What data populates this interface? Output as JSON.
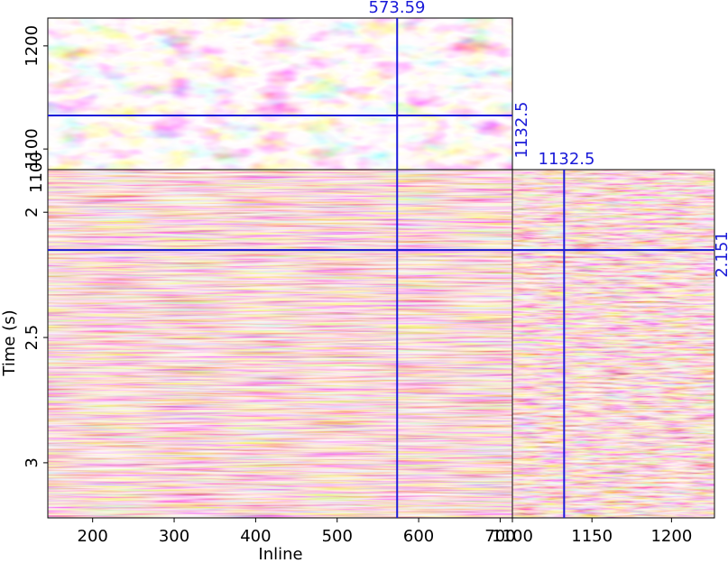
{
  "figure": {
    "type": "seismic-3d-cube-slices",
    "panels": {
      "time_slice": {
        "crossline_axis": {
          "ticks": [
            {
              "value": 1100,
              "label": "1100"
            },
            {
              "value": 1200,
              "label": "1200"
            }
          ],
          "range": [
            1080,
            1227
          ]
        }
      },
      "inline_section": {
        "xlabel": "Inline",
        "ylabel": "Time (s)",
        "x_range": [
          145,
          715
        ],
        "y_range": [
          1.83,
          3.22
        ],
        "x_ticks": [
          {
            "value": 200,
            "label": "200"
          },
          {
            "value": 300,
            "label": "300"
          },
          {
            "value": 400,
            "label": "400"
          },
          {
            "value": 500,
            "label": "500"
          },
          {
            "value": 600,
            "label": "600"
          },
          {
            "value": 700,
            "label": "700"
          }
        ],
        "y_ticks": [
          {
            "value": 2,
            "label": "2"
          },
          {
            "value": 2.5,
            "label": "2.5"
          },
          {
            "value": 3,
            "label": "3"
          }
        ],
        "left_corner_label": "1100"
      },
      "crossline_section": {
        "x_range": [
          1100,
          1227
        ],
        "x_ticks": [
          {
            "value": 1100,
            "label": "1100"
          },
          {
            "value": 1150,
            "label": "1150"
          },
          {
            "value": 1200,
            "label": "1200"
          }
        ]
      }
    },
    "cursors": {
      "inline": {
        "value": 573.59,
        "label": "573.59"
      },
      "crossline": {
        "value": 1132.5,
        "label": "1132.5"
      },
      "crossline_top": {
        "value": 1132.5,
        "label": "1132.5"
      },
      "time": {
        "value": 2.151,
        "label": "2.151"
      }
    },
    "colormap": {
      "time_slice": [
        "#1a1a1a",
        "#9a9a9a",
        "#ffffff",
        "#ff9aa8",
        "#e81020"
      ],
      "sections": [
        "#ffffff",
        "#e8b0b0",
        "#b03030",
        "#400000"
      ]
    },
    "cursor_color": "#1a1ad8"
  }
}
